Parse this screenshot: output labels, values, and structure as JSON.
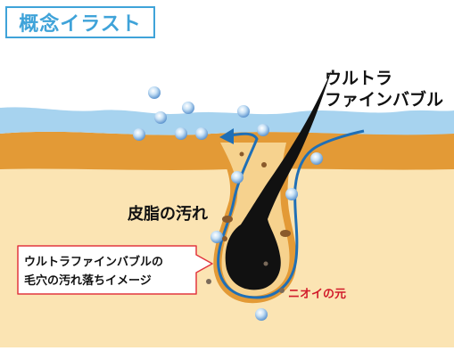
{
  "title": "概念イラスト",
  "labels": {
    "ultra_fine_bubble_line1": "ウルトラ",
    "ultra_fine_bubble_line2": "ファインバブル",
    "sebum_dirt": "皮脂の汚れ",
    "odor_source": "ニオイの元"
  },
  "callout": {
    "line1": "ウルトラファインバブルの",
    "line2": "毛穴の汚れ落ちイメージ"
  },
  "colors": {
    "title_accent": "#3fa3d9",
    "water": "#a7d3ef",
    "skin_surface": "#e39a36",
    "skin_dermis": "#fbe4b3",
    "hair": "#111111",
    "flow_arrow": "#1f6fb6",
    "odor_text": "#d11a2a",
    "callout_border": "#e2363f"
  }
}
